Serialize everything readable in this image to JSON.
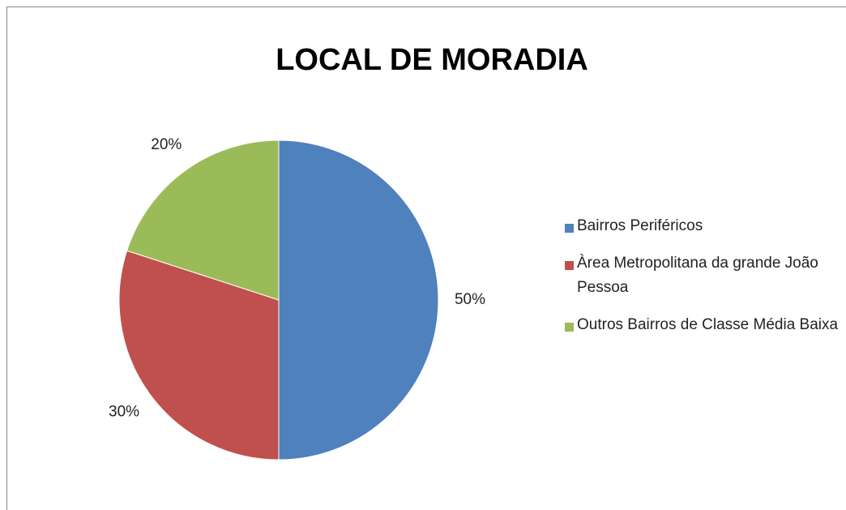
{
  "chart_data": {
    "type": "pie",
    "title": "LOCAL DE MORADIA",
    "categories": [
      "Bairros Periféricos",
      "Àrea Metropolitana da grande João Pessoa",
      "Outros Bairros de Classe Média Baixa"
    ],
    "values": [
      50,
      30,
      20
    ],
    "value_labels": [
      "50%",
      "30%",
      "20%"
    ],
    "colors": [
      "#4f81bd",
      "#c0504d",
      "#9bbb59"
    ],
    "legend": "right"
  }
}
